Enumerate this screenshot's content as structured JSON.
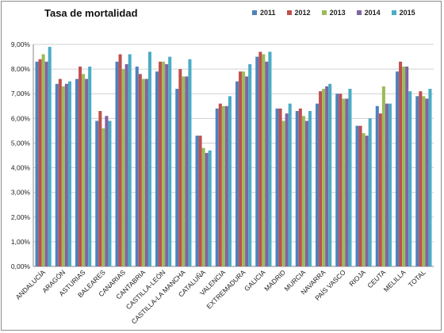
{
  "chart_data": {
    "type": "bar",
    "title": "Tasa de mortalidad",
    "xlabel": "",
    "ylabel": "",
    "ylim": [
      0,
      9
    ],
    "yticks": [
      "0,00%",
      "1,00%",
      "2,00%",
      "3,00%",
      "4,00%",
      "5,00%",
      "6,00%",
      "7,00%",
      "8,00%",
      "9,00%"
    ],
    "grid": true,
    "legend_position": "top-right",
    "categories": [
      "ANDALUCÍA",
      "ARAGÓN",
      "ASTURIAS",
      "BALEARES",
      "CANARIAS",
      "CANTABRIA",
      "CASTILLA-LEÓN",
      "CASTILLA-LA MANCHA",
      "CATALUÑA",
      "VALENCIA",
      "EXTREMADURA",
      "GALICIA",
      "MADRID",
      "MURCIA",
      "NAVARRA",
      "PAÍS VASCO",
      "RIOJA",
      "CEUTA",
      "MELILLA",
      "TOTAL"
    ],
    "series": [
      {
        "name": "2011",
        "color": "#4f81bd",
        "values": [
          8.3,
          7.4,
          7.6,
          5.9,
          8.3,
          8.1,
          7.9,
          7.2,
          5.3,
          6.4,
          7.5,
          8.5,
          6.4,
          6.3,
          6.6,
          7.0,
          5.7,
          6.5,
          7.9,
          6.9
        ]
      },
      {
        "name": "2012",
        "color": "#c0504d",
        "values": [
          8.4,
          7.6,
          8.1,
          6.3,
          8.6,
          7.8,
          8.3,
          8.0,
          5.3,
          6.6,
          7.9,
          8.7,
          6.4,
          6.4,
          7.1,
          7.0,
          5.7,
          6.2,
          8.3,
          7.1
        ]
      },
      {
        "name": "2013",
        "color": "#9bbb59",
        "values": [
          8.6,
          7.3,
          7.8,
          5.6,
          8.0,
          7.6,
          8.3,
          7.7,
          4.8,
          6.5,
          7.9,
          8.6,
          5.9,
          6.1,
          7.2,
          6.8,
          5.4,
          7.3,
          8.1,
          6.9
        ]
      },
      {
        "name": "2014",
        "color": "#8064a2",
        "values": [
          8.3,
          7.4,
          7.6,
          6.1,
          8.2,
          7.6,
          8.2,
          7.7,
          4.6,
          6.5,
          7.7,
          8.3,
          6.2,
          5.9,
          7.3,
          6.8,
          5.3,
          6.6,
          8.1,
          6.8
        ]
      },
      {
        "name": "2015",
        "color": "#4bacc6",
        "values": [
          8.9,
          7.5,
          8.1,
          5.9,
          8.6,
          8.7,
          8.5,
          8.4,
          4.7,
          6.9,
          8.2,
          8.7,
          6.6,
          6.3,
          7.4,
          7.2,
          6.0,
          6.6,
          7.1,
          7.2
        ]
      }
    ]
  }
}
